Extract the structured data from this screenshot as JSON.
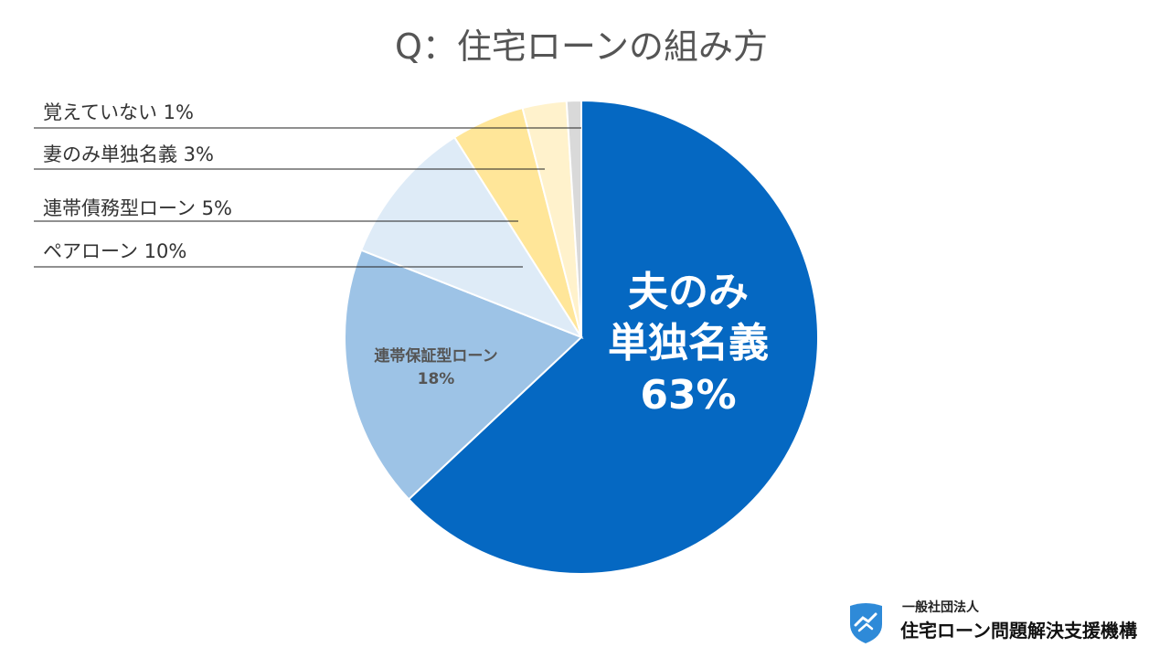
{
  "chart_data": {
    "type": "pie",
    "title": "Q：住宅ローンの組み方",
    "slices": [
      {
        "name": "夫のみ単独名義",
        "value": 63,
        "label_lines": [
          "夫のみ",
          "単独名義",
          "63%"
        ],
        "color": "#0568c2"
      },
      {
        "name": "連帯保証型ローン",
        "value": 18,
        "label_lines": [
          "連帯保証型ローン",
          "18%"
        ],
        "color": "#9dc3e6"
      },
      {
        "name": "ペアローン",
        "value": 10,
        "label": "ペアローン 10%",
        "color": "#deebf7"
      },
      {
        "name": "連帯債務型ローン",
        "value": 5,
        "label": "連帯債務型ローン 5%",
        "color": "#ffe699"
      },
      {
        "name": "妻のみ単独名義",
        "value": 3,
        "label": "妻のみ単独名義 3%",
        "color": "#fff2cc"
      },
      {
        "name": "覚えていない",
        "value": 1,
        "label": "覚えていない 1%",
        "color": "#d9d9d9"
      }
    ]
  },
  "org": {
    "type_label": "一般社団法人",
    "name": "住宅ローン問題解決支援機構",
    "logo_icon": "handshake-shield-icon",
    "logo_color": "#2e8ad8"
  }
}
